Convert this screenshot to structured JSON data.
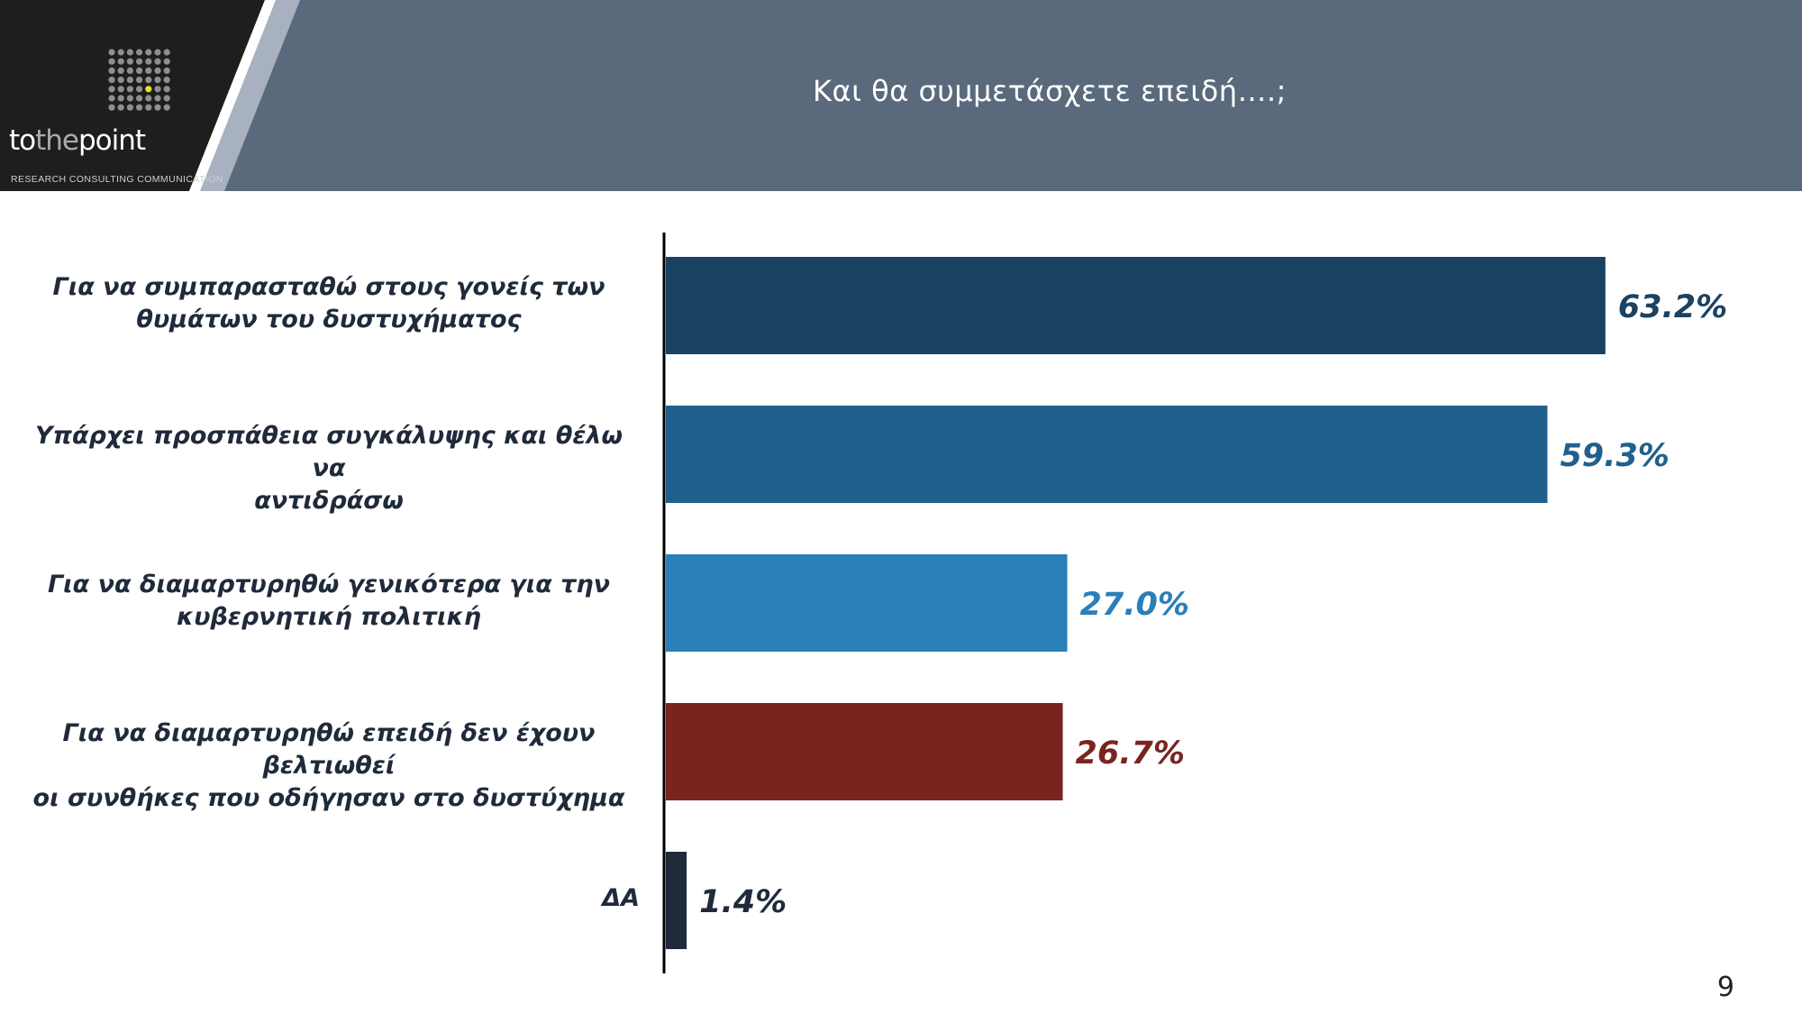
{
  "header": {
    "title": "Και θα συμμετάσχετε επειδή….;",
    "logo_to": "to",
    "logo_the": "the",
    "logo_point": "point",
    "logo_tagline": "RESEARCH  CONSULTING  COMMUNICATION"
  },
  "colors": {
    "header_bg": "#5a6a7c",
    "logo_bg": "#1e1e1e",
    "stripe": "#a7b1bf",
    "accent_dot": "#e7e22a"
  },
  "chart_data": {
    "type": "bar",
    "orientation": "horizontal",
    "title": "Και θα συμμετάσχετε επειδή….;",
    "categories": [
      "Για να συμπαρασταθώ στους γονείς των θυμάτων του δυστυχήματος",
      "Υπάρχει προσπάθεια συγκάλυψης και θέλω να αντιδράσω",
      "Για να διαμαρτυρηθώ γενικότερα για την κυβερνητική πολιτική",
      "Για να διαμαρτυρηθώ επειδή δεν έχουν βελτιωθεί οι συνθήκες που οδήγησαν στο δυστύχημα",
      "ΔΑ"
    ],
    "label_lines": [
      [
        "Για να συμπαρασταθώ στους γονείς των",
        "θυμάτων του δυστυχήματος"
      ],
      [
        "Υπάρχει προσπάθεια συγκάλυψης και θέλω να",
        "αντιδράσω"
      ],
      [
        "Για να διαμαρτυρηθώ γενικότερα για την",
        "κυβερνητική πολιτική"
      ],
      [
        "Για να διαμαρτυρηθώ επειδή δεν έχουν βελτιωθεί",
        "οι συνθήκες που οδήγησαν στο δυστύχημα"
      ],
      [
        "ΔΑ"
      ]
    ],
    "values": [
      63.2,
      59.3,
      27.0,
      26.7,
      1.4
    ],
    "value_labels": [
      "63.2%",
      "59.3%",
      "27.0%",
      "26.7%",
      "1.4%"
    ],
    "bar_colors": [
      "#1a4262",
      "#21608c",
      "#2a7fb8",
      "#7a2420",
      "#1f2a3a"
    ],
    "label_colors": [
      "#1a4262",
      "#21608c",
      "#2a7fb8",
      "#7a2420",
      "#1f2a3a"
    ],
    "xlim": [
      0,
      70
    ],
    "grid": false,
    "legend": "none"
  },
  "footer": {
    "page_number": "9"
  }
}
